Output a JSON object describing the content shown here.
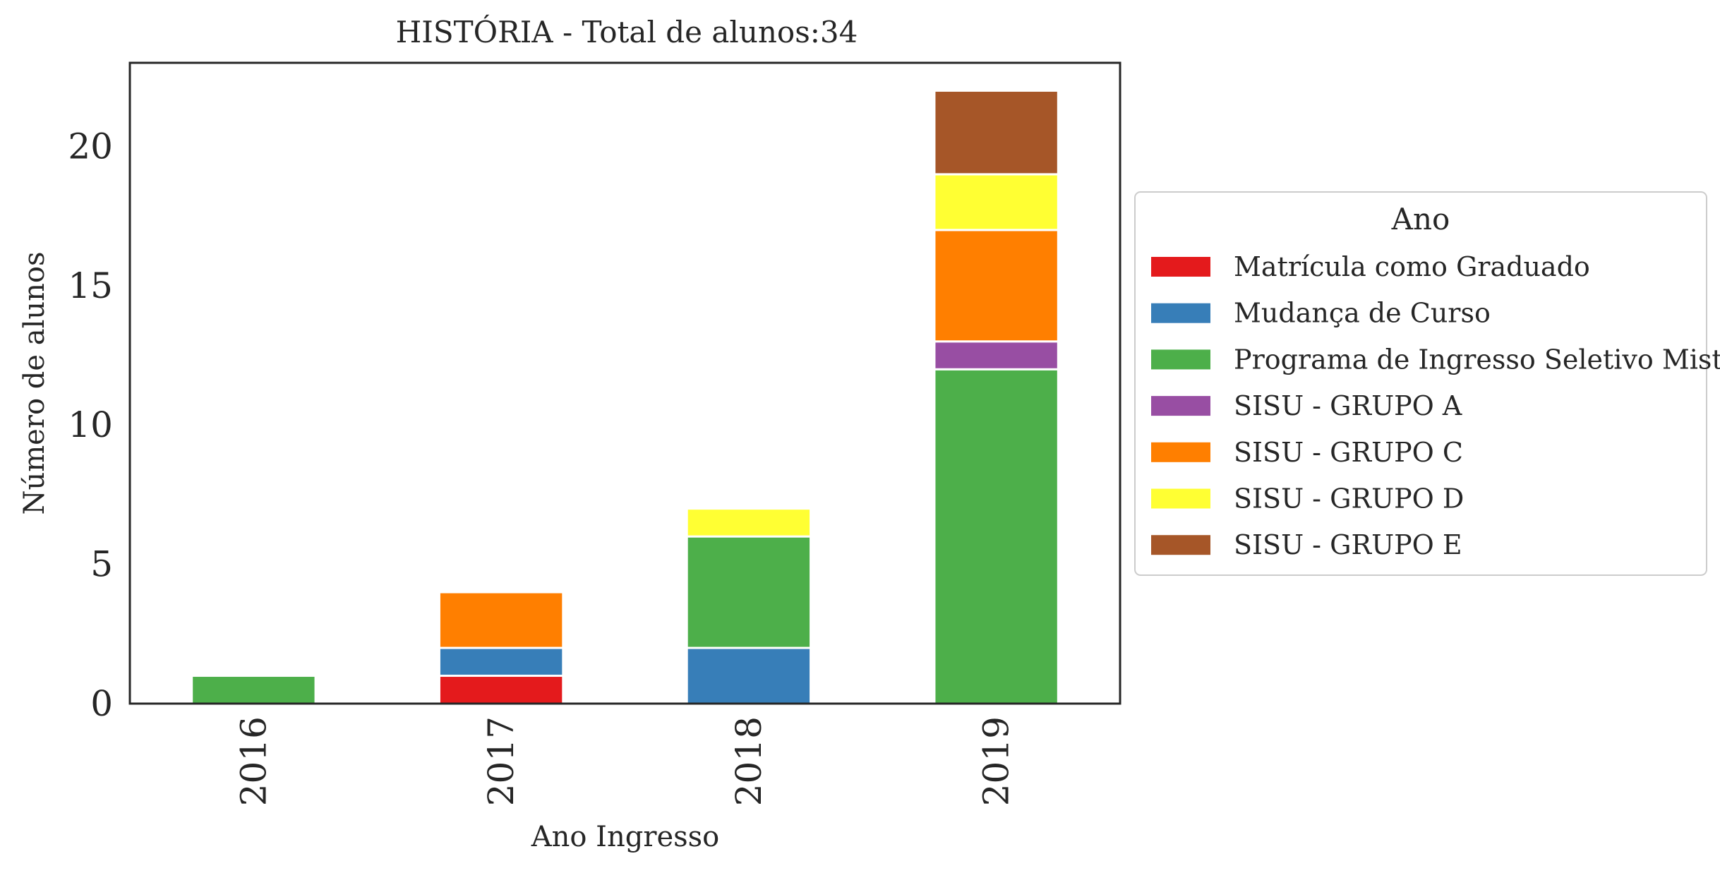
{
  "chart_data": {
    "type": "bar",
    "stacked": true,
    "title": "HISTÓRIA - Total de alunos:34",
    "xlabel": "Ano Ingresso",
    "ylabel": "Número de alunos",
    "categories": [
      "2016",
      "2017",
      "2018",
      "2019"
    ],
    "ylim": [
      0,
      23
    ],
    "yticks": [
      0,
      5,
      10,
      15,
      20
    ],
    "legend": {
      "title": "Ano",
      "placement": "right, outside plot"
    },
    "series": [
      {
        "name": "Matrícula como Graduado",
        "color": "#e41a1c",
        "values": [
          0,
          1,
          0,
          0
        ]
      },
      {
        "name": "Mudança de Curso",
        "color": "#377eb8",
        "values": [
          0,
          1,
          2,
          0
        ]
      },
      {
        "name": "Programa de Ingresso Seletivo Misto",
        "color": "#4daf4a",
        "values": [
          1,
          0,
          4,
          12
        ]
      },
      {
        "name": "SISU - GRUPO A",
        "color": "#984ea3",
        "values": [
          0,
          0,
          0,
          1
        ]
      },
      {
        "name": "SISU - GRUPO C",
        "color": "#ff7f00",
        "values": [
          0,
          2,
          0,
          4
        ]
      },
      {
        "name": "SISU - GRUPO D",
        "color": "#ffff33",
        "values": [
          0,
          0,
          1,
          2
        ]
      },
      {
        "name": "SISU - GRUPO E",
        "color": "#a65628",
        "values": [
          0,
          0,
          0,
          3
        ]
      }
    ]
  }
}
